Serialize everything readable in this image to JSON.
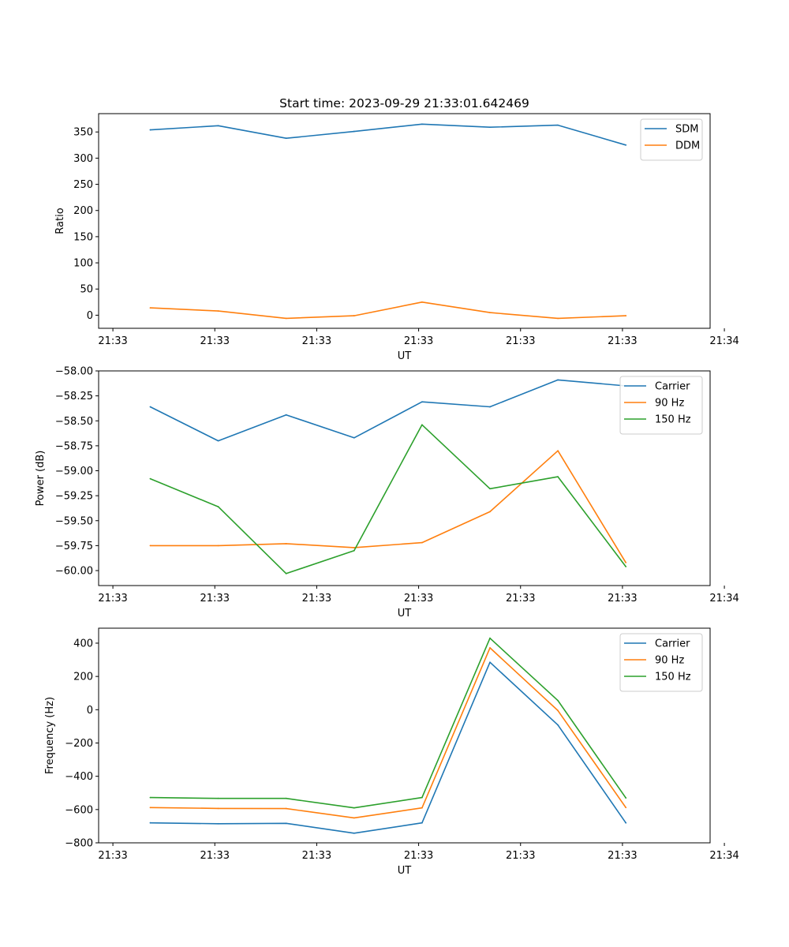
{
  "figure_title": "Start time: 2023-09-29 21:33:01.642469",
  "colors": {
    "blue": "#1f77b4",
    "orange": "#ff7f0e",
    "green": "#2ca02c"
  },
  "chart_data": [
    {
      "type": "line",
      "title": "Start time: 2023-09-29 21:33:01.642469",
      "xlabel": "UT",
      "ylabel": "Ratio",
      "x": [
        1,
        2,
        3,
        4,
        5,
        6,
        7,
        8
      ],
      "xlim": [
        0.24,
        9.24
      ],
      "x_ticks": [
        0.45,
        1.95,
        3.45,
        4.95,
        6.45,
        7.95,
        9.45
      ],
      "x_tick_labels": [
        "21:33",
        "21:33",
        "21:33",
        "21:33",
        "21:33",
        "21:33",
        "21:34"
      ],
      "ylim": [
        -25,
        385
      ],
      "y_ticks": [
        0,
        50,
        100,
        150,
        200,
        250,
        300,
        350
      ],
      "y_tick_labels": [
        "0",
        "50",
        "100",
        "150",
        "200",
        "250",
        "300",
        "350"
      ],
      "legend_position": "top-right",
      "series": [
        {
          "name": "SDM",
          "color": "#1f77b4",
          "values": [
            354,
            362,
            338,
            351,
            365,
            359,
            363,
            325
          ]
        },
        {
          "name": "DDM",
          "color": "#ff7f0e",
          "values": [
            14,
            8,
            -6,
            -1,
            25,
            5,
            -6,
            -1
          ]
        }
      ]
    },
    {
      "type": "line",
      "title": "",
      "xlabel": "UT",
      "ylabel": "Power (dB)",
      "x": [
        1,
        2,
        3,
        4,
        5,
        6,
        7,
        8
      ],
      "xlim": [
        0.24,
        9.24
      ],
      "x_ticks": [
        0.45,
        1.95,
        3.45,
        4.95,
        6.45,
        7.95,
        9.45
      ],
      "x_tick_labels": [
        "21:33",
        "21:33",
        "21:33",
        "21:33",
        "21:33",
        "21:33",
        "21:34"
      ],
      "ylim": [
        -60.15,
        -58.0
      ],
      "y_ticks": [
        -58.0,
        -58.25,
        -58.5,
        -58.75,
        -59.0,
        -59.25,
        -59.5,
        -59.75,
        -60.0
      ],
      "y_tick_labels": [
        "−58.00",
        "−58.25",
        "−58.50",
        "−58.75",
        "−59.00",
        "−59.25",
        "−59.50",
        "−59.75",
        "−60.00"
      ],
      "legend_position": "top-right",
      "series": [
        {
          "name": "Carrier",
          "color": "#1f77b4",
          "values": [
            -58.36,
            -58.7,
            -58.44,
            -58.67,
            -58.31,
            -58.36,
            -58.09,
            -58.15
          ]
        },
        {
          "name": "90 Hz",
          "color": "#ff7f0e",
          "values": [
            -59.75,
            -59.75,
            -59.73,
            -59.77,
            -59.72,
            -59.41,
            -58.8,
            -59.92
          ]
        },
        {
          "name": "150 Hz",
          "color": "#2ca02c",
          "values": [
            -59.08,
            -59.36,
            -60.03,
            -59.8,
            -58.54,
            -59.18,
            -59.06,
            -59.96
          ]
        }
      ]
    },
    {
      "type": "line",
      "title": "",
      "xlabel": "UT",
      "ylabel": "Frequency (Hz)",
      "x": [
        1,
        2,
        3,
        4,
        5,
        6,
        7,
        8
      ],
      "xlim": [
        0.24,
        9.24
      ],
      "x_ticks": [
        0.45,
        1.95,
        3.45,
        4.95,
        6.45,
        7.95,
        9.45
      ],
      "x_tick_labels": [
        "21:33",
        "21:33",
        "21:33",
        "21:33",
        "21:33",
        "21:33",
        "21:34"
      ],
      "ylim": [
        -800,
        490
      ],
      "y_ticks": [
        400,
        200,
        0,
        -200,
        -400,
        -600,
        -800
      ],
      "y_tick_labels": [
        "400",
        "200",
        "0",
        "−200",
        "−400",
        "−600",
        "−800"
      ],
      "legend_position": "top-right",
      "series": [
        {
          "name": "Carrier",
          "color": "#1f77b4",
          "values": [
            -680,
            -685,
            -683,
            -742,
            -680,
            285,
            -92,
            -680
          ]
        },
        {
          "name": "90 Hz",
          "color": "#ff7f0e",
          "values": [
            -588,
            -593,
            -594,
            -650,
            -590,
            372,
            -5,
            -588
          ]
        },
        {
          "name": "150 Hz",
          "color": "#2ca02c",
          "values": [
            -528,
            -533,
            -533,
            -590,
            -528,
            430,
            55,
            -530
          ]
        }
      ]
    }
  ]
}
